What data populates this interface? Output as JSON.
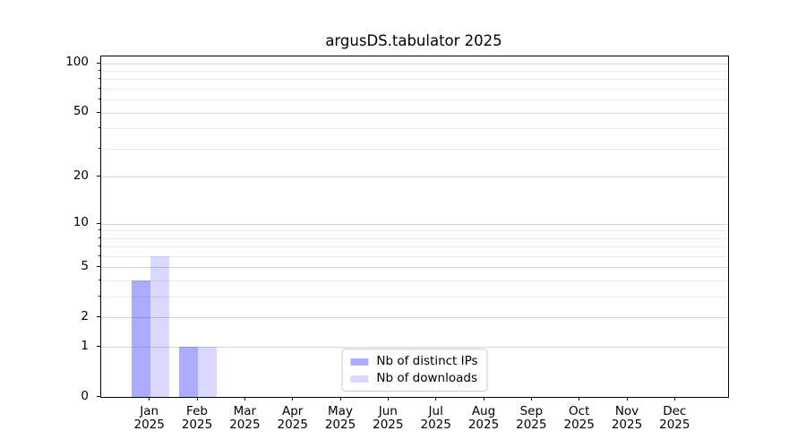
{
  "chart_data": {
    "type": "bar",
    "title": "argusDS.tabulator 2025",
    "xlabel": "",
    "ylabel": "",
    "categories": [
      "Jan",
      "Feb",
      "Mar",
      "Apr",
      "May",
      "Jun",
      "Jul",
      "Aug",
      "Sep",
      "Oct",
      "Nov",
      "Dec"
    ],
    "year_label": "2025",
    "series": [
      {
        "name": "Nb of distinct IPs",
        "color": "rgba(0,0,255,0.33)",
        "swatch_hex": "#aaaaff",
        "values": [
          4,
          1,
          0,
          0,
          0,
          0,
          0,
          0,
          0,
          0,
          0,
          0
        ]
      },
      {
        "name": "Nb of downloads",
        "color": "rgba(0,0,255,0.15)",
        "swatch_hex": "#d9d9ff",
        "values": [
          6,
          1,
          0,
          0,
          0,
          0,
          0,
          0,
          0,
          0,
          0,
          0
        ]
      }
    ],
    "yscale": "log1p",
    "ylim": [
      0,
      110
    ],
    "ytick_values": [
      0,
      1,
      2,
      5,
      10,
      20,
      50,
      100
    ],
    "ytick_labels": [
      "0",
      "1",
      "2",
      "5",
      "10",
      "20",
      "50",
      "100"
    ],
    "ytick_minor_values": [
      3,
      4,
      6,
      7,
      8,
      9,
      30,
      40,
      60,
      70,
      80,
      90
    ],
    "grid": true,
    "legend_position": "lower center",
    "colors": {
      "grid_major": "#d8d8d8",
      "grid_minor": "#ebebeb",
      "spine": "#000000",
      "text": "#000000",
      "legend_border": "#cccccc"
    }
  }
}
